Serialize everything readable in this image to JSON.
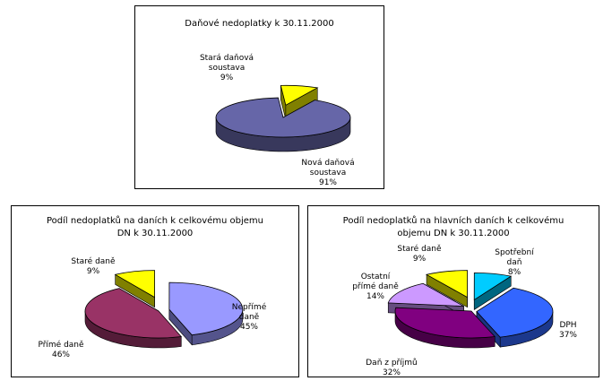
{
  "chart_data": [
    {
      "type": "pie",
      "title": "Daňové nedoplatky k 30.11.2000",
      "series": [
        {
          "label": "Nová daňová\nsoustava\n91%",
          "value": 91,
          "color": "#6666a8"
        },
        {
          "label": "Stará daňová\nsoustava\n9%",
          "value": 9,
          "color": "#ffff00"
        }
      ]
    },
    {
      "type": "pie",
      "title": "Podíl nedoplatků na daních k celkovému objemu\nDN k 30.11.2000",
      "series": [
        {
          "label": "Nepřímé\ndaně\n45%",
          "value": 45,
          "color": "#9999ff"
        },
        {
          "label": "Přímé daně\n46%",
          "value": 46,
          "color": "#993366"
        },
        {
          "label": "Staré daně\n9%",
          "value": 9,
          "color": "#ffff00"
        }
      ]
    },
    {
      "type": "pie",
      "title": "Podíl nedoplatků na hlavních daních k celkovému\nobjemu DN k 30.11.2000",
      "series": [
        {
          "label": "Spotřební\ndaň\n8%",
          "value": 8,
          "color": "#00ccff"
        },
        {
          "label": "DPH\n37%",
          "value": 37,
          "color": "#3366ff"
        },
        {
          "label": "Daň z příjmů\n32%",
          "value": 32,
          "color": "#800080"
        },
        {
          "label": "Ostatní\npřímé daně\n14%",
          "value": 14,
          "color": "#cc99ff"
        },
        {
          "label": "Staré daně\n9%",
          "value": 9,
          "color": "#ffff00"
        }
      ]
    }
  ]
}
